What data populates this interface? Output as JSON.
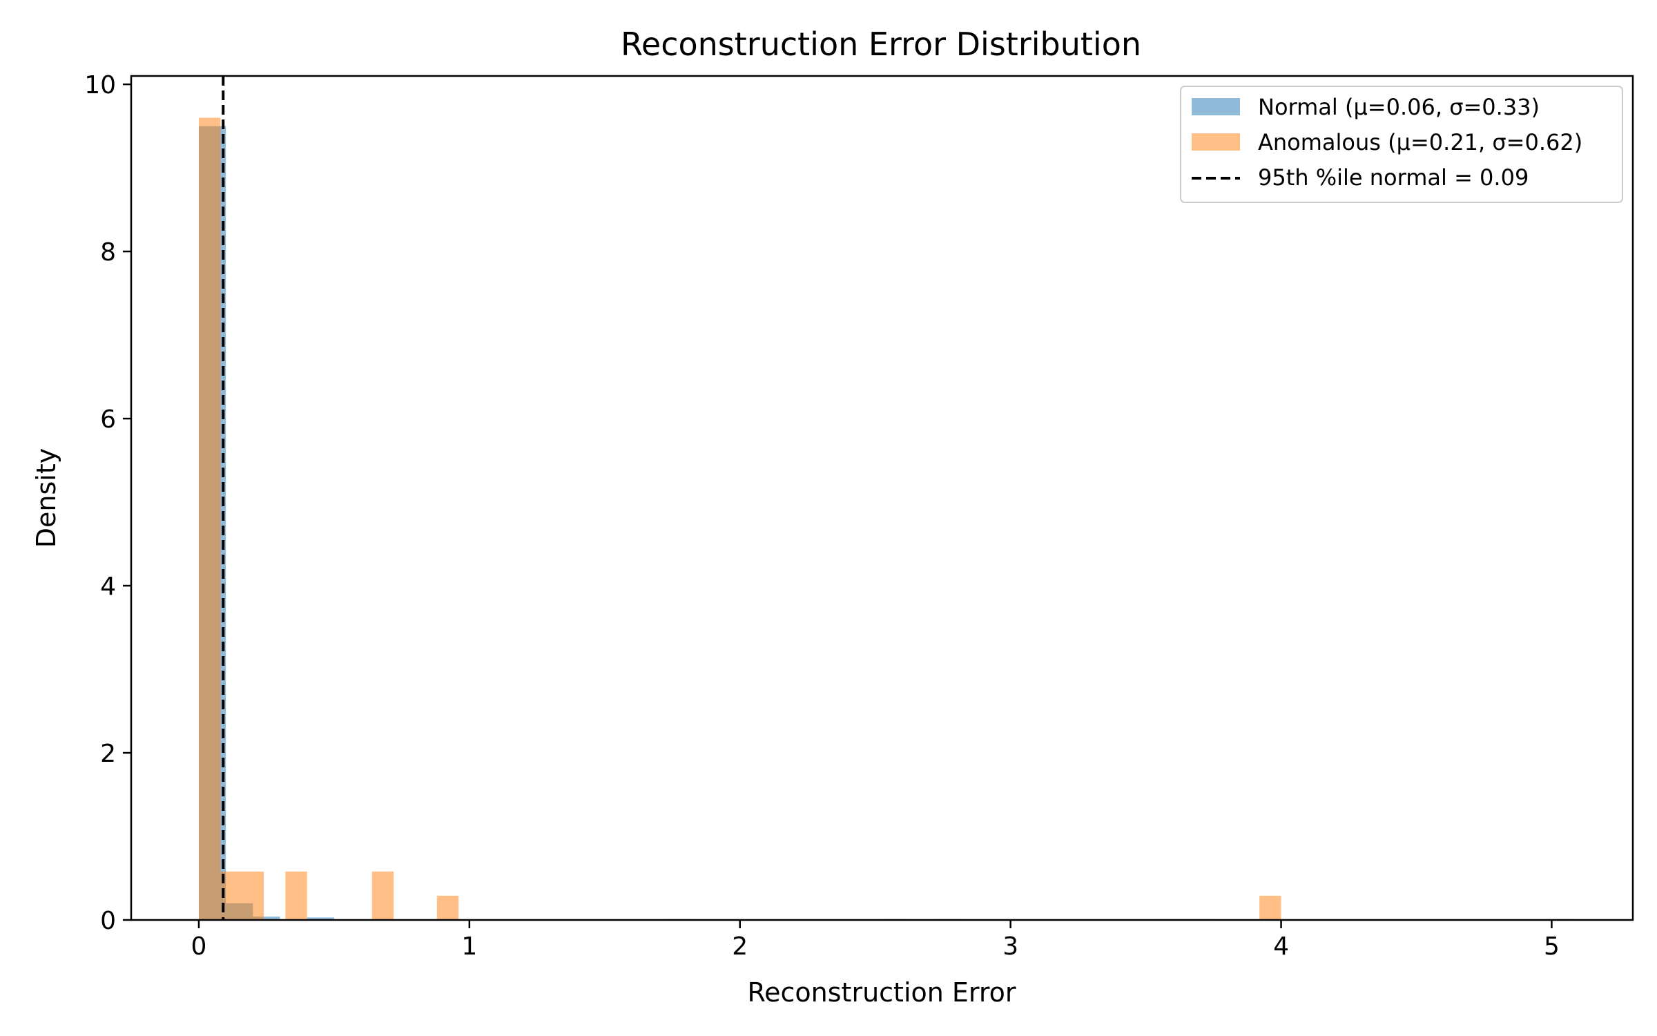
{
  "chart_data": {
    "type": "histogram",
    "title": "Reconstruction Error Distribution",
    "xlabel": "Reconstruction Error",
    "ylabel": "Density",
    "xlim": [
      -0.25,
      5.3
    ],
    "ylim": [
      0,
      10.1
    ],
    "xticks": [
      0,
      1,
      2,
      3,
      4,
      5
    ],
    "yticks": [
      0,
      2,
      4,
      6,
      8,
      10
    ],
    "grid": false,
    "legend_position": "top-right",
    "series": [
      {
        "name": "Normal (μ=0.06, σ=0.33)",
        "color": "#1f77b4",
        "opacity": 0.5,
        "bins": [
          {
            "x0": 0.0,
            "x1": 0.1,
            "density": 9.5
          },
          {
            "x0": 0.1,
            "x1": 0.2,
            "density": 0.2
          },
          {
            "x0": 0.2,
            "x1": 0.3,
            "density": 0.04
          },
          {
            "x0": 0.4,
            "x1": 0.5,
            "density": 0.03
          },
          {
            "x0": 1.72,
            "x1": 1.82,
            "density": 0.01
          },
          {
            "x0": 2.52,
            "x1": 2.62,
            "density": 0.01
          },
          {
            "x0": 2.72,
            "x1": 2.82,
            "density": 0.01
          },
          {
            "x0": 3.55,
            "x1": 3.75,
            "density": 0.01
          },
          {
            "x0": 4.98,
            "x1": 5.08,
            "density": 0.01
          }
        ]
      },
      {
        "name": "Anomalous (μ=0.21, σ=0.62)",
        "color": "#ff7f0e",
        "opacity": 0.5,
        "bins": [
          {
            "x0": 0.0,
            "x1": 0.08,
            "density": 9.6
          },
          {
            "x0": 0.08,
            "x1": 0.16,
            "density": 0.58
          },
          {
            "x0": 0.16,
            "x1": 0.24,
            "density": 0.58
          },
          {
            "x0": 0.32,
            "x1": 0.4,
            "density": 0.58
          },
          {
            "x0": 0.64,
            "x1": 0.72,
            "density": 0.58
          },
          {
            "x0": 0.88,
            "x1": 0.96,
            "density": 0.29
          },
          {
            "x0": 3.92,
            "x1": 4.0,
            "density": 0.29
          }
        ]
      }
    ],
    "threshold": {
      "label": "95th %ile normal = 0.09",
      "x": 0.09,
      "color": "#000000",
      "style": "dashed"
    }
  }
}
